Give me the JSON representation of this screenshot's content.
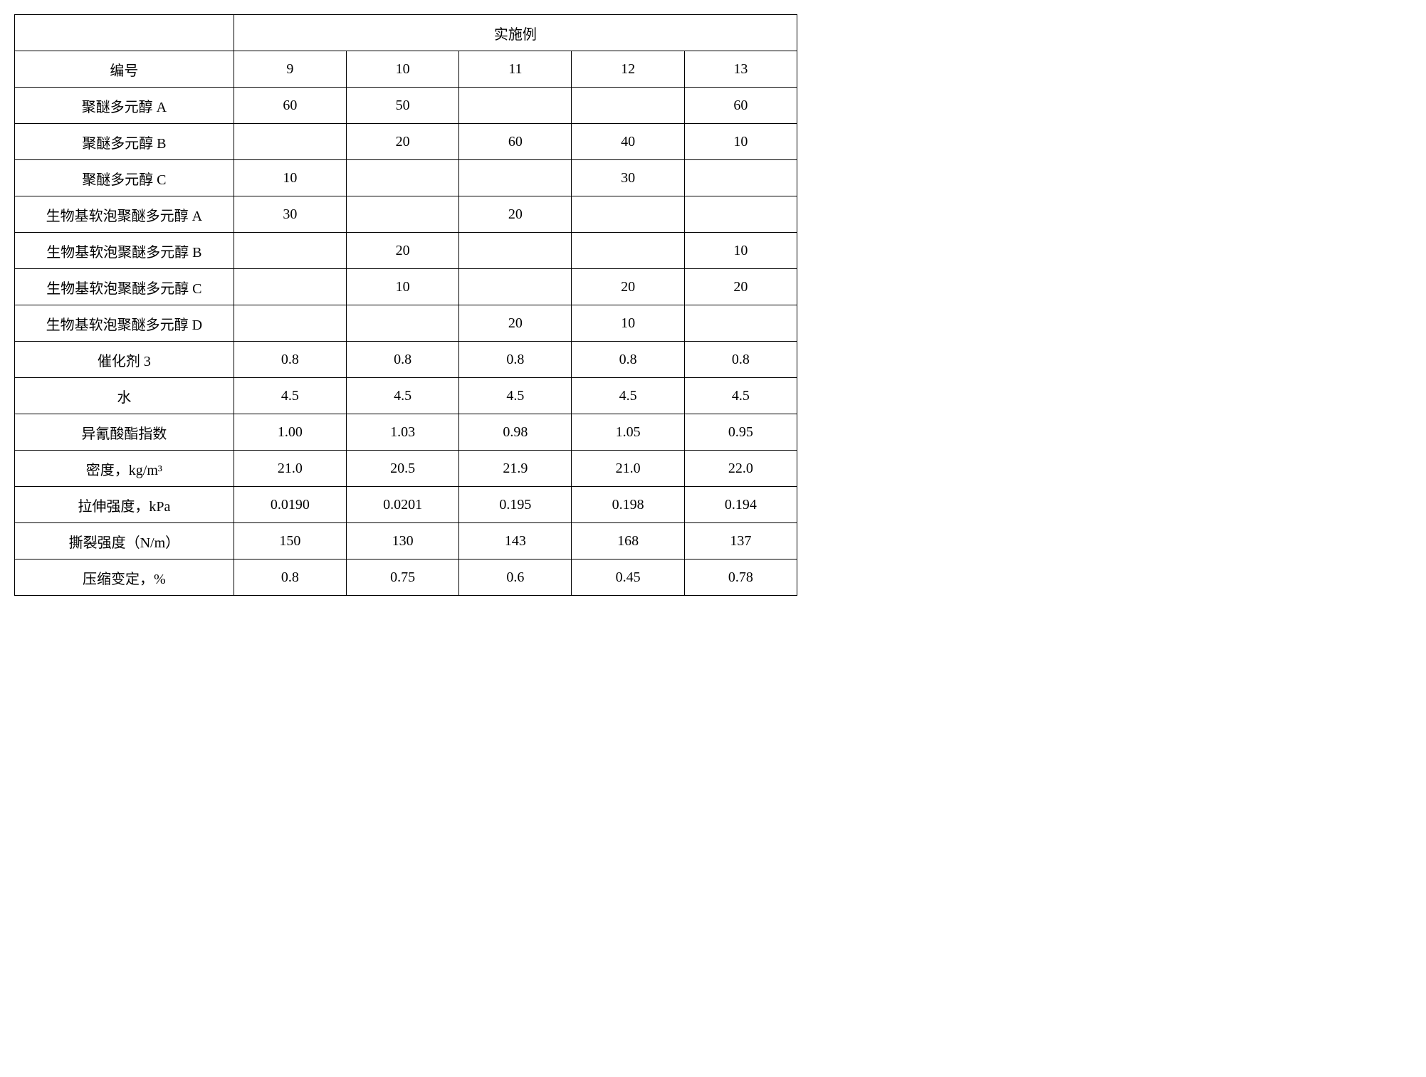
{
  "table": {
    "header_group": "实施例",
    "row_label_header": "编号",
    "columns": [
      "9",
      "10",
      "11",
      "12",
      "13"
    ],
    "rows": [
      {
        "label": "聚醚多元醇 A",
        "values": [
          "60",
          "50",
          "",
          "",
          "60"
        ]
      },
      {
        "label": "聚醚多元醇 B",
        "values": [
          "",
          "20",
          "60",
          "40",
          "10"
        ]
      },
      {
        "label": "聚醚多元醇 C",
        "values": [
          "10",
          "",
          "",
          "30",
          ""
        ]
      },
      {
        "label": "生物基软泡聚醚多元醇 A",
        "values": [
          "30",
          "",
          "20",
          "",
          ""
        ]
      },
      {
        "label": "生物基软泡聚醚多元醇 B",
        "values": [
          "",
          "20",
          "",
          "",
          "10"
        ]
      },
      {
        "label": "生物基软泡聚醚多元醇 C",
        "values": [
          "",
          "10",
          "",
          "20",
          "20"
        ]
      },
      {
        "label": "生物基软泡聚醚多元醇 D",
        "values": [
          "",
          "",
          "20",
          "10",
          ""
        ]
      },
      {
        "label": "催化剂 3",
        "values": [
          "0.8",
          "0.8",
          "0.8",
          "0.8",
          "0.8"
        ]
      },
      {
        "label": "水",
        "values": [
          "4.5",
          "4.5",
          "4.5",
          "4.5",
          "4.5"
        ]
      },
      {
        "label": "异氰酸酯指数",
        "values": [
          "1.00",
          "1.03",
          "0.98",
          "1.05",
          "0.95"
        ]
      },
      {
        "label": "密度，kg/m³",
        "values": [
          "21.0",
          "20.5",
          "21.9",
          "21.0",
          "22.0"
        ]
      },
      {
        "label": "拉伸强度，kPa",
        "values": [
          "0.0190",
          "0.0201",
          "0.195",
          "0.198",
          "0.194"
        ]
      },
      {
        "label": "撕裂强度（N/m）",
        "values": [
          "150",
          "130",
          "143",
          "168",
          "137"
        ]
      },
      {
        "label": "压缩变定，%",
        "values": [
          "0.8",
          "0.75",
          "0.6",
          "0.45",
          "0.78"
        ]
      }
    ],
    "colors": {
      "border": "#000000",
      "background": "#ffffff",
      "text": "#000000"
    },
    "font": {
      "family": "SimSun",
      "size_pt": 15
    }
  }
}
